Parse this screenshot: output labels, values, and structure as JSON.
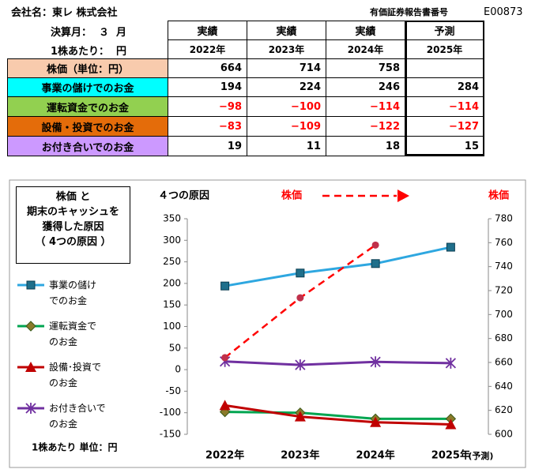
{
  "table": {
    "company": "会社名：東レ 株式会社",
    "report_label": "有価証券報告書番号",
    "report_no": "E00873",
    "header_rows": [
      [
        "決算月：  ３  月",
        "実績",
        "実績",
        "実績",
        "予測"
      ],
      [
        "1株あたり：  円",
        "2022年",
        "2023年",
        "2024年",
        "2025年"
      ]
    ],
    "rows": [
      [
        "株価（単位：円）",
        "664",
        "714",
        "758",
        null
      ],
      [
        "事業の儲けでのお金",
        "194",
        "224",
        "246",
        "284"
      ],
      [
        "運転資金でのお金",
        "−98",
        "−100",
        "−114",
        "−114"
      ],
      [
        "設備・投資でのお金",
        "−83",
        "−109",
        "−122",
        "−127"
      ],
      [
        "お付き合いでのお金",
        "19",
        "11",
        "18",
        "15"
      ]
    ]
  },
  "chart_data": {
    "type": "line",
    "box_title": "株価 と\n期末のキャッシュを\n獲得した原因\n（ 4つの原因 ）",
    "title": "４つの原因",
    "price_label": "株価",
    "y2_label": "株価",
    "unit_note": "1株あたり  単位：円",
    "categories": [
      "2022年",
      "2023年",
      "2024年",
      "2025年"
    ],
    "forecast_note": "(予測)",
    "ylim": [
      -150,
      350
    ],
    "yticks": [
      -150,
      -100,
      -50,
      0,
      50,
      100,
      150,
      200,
      250,
      300,
      350
    ],
    "y2lim": [
      600,
      780
    ],
    "y2ticks": [
      600,
      620,
      640,
      660,
      680,
      700,
      720,
      740,
      760,
      780
    ],
    "series": [
      {
        "name": "事業の儲け\nでのお金",
        "color": "#2ea7e0",
        "marker": "square",
        "marker_color": "#1f6f8b",
        "values": [
          194,
          224,
          246,
          284
        ]
      },
      {
        "name": "運転資金で\nのお金",
        "color": "#00a550",
        "marker": "diamond",
        "marker_color": "#8a7a2a",
        "values": [
          -98,
          -100,
          -114,
          -114
        ]
      },
      {
        "name": "設備･投資で\nのお金",
        "color": "#c00000",
        "marker": "triangle",
        "marker_color": "#c00000",
        "values": [
          -83,
          -109,
          -122,
          -127
        ]
      },
      {
        "name": "お付き合いで\nのお金",
        "color": "#7030a0",
        "marker": "star",
        "marker_color": "#7030a0",
        "values": [
          19,
          11,
          18,
          15
        ]
      },
      {
        "name": "株価",
        "color": "#ff0000",
        "marker": "circle",
        "marker_color": "#c0304a",
        "dashed": true,
        "axis": "y2",
        "values": [
          664,
          714,
          758,
          null
        ]
      }
    ]
  }
}
